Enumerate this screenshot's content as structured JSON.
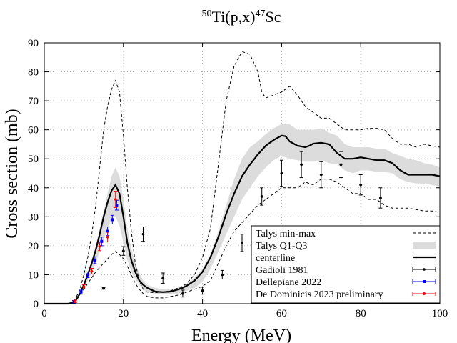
{
  "chart_data": {
    "type": "line",
    "title": {
      "base": "Ti(p,x)",
      "target_mass": "50",
      "product_mass": "47",
      "product": "Sc"
    },
    "xlabel": "Energy (MeV)",
    "ylabel": "Cross section (mb)",
    "xlim": [
      0,
      100
    ],
    "ylim": [
      0,
      90
    ],
    "xticks": [
      0,
      20,
      40,
      60,
      80,
      100
    ],
    "yticks": [
      0,
      10,
      20,
      30,
      40,
      50,
      60,
      70,
      80,
      90
    ],
    "grid": true,
    "legend_position": "bottom-right",
    "legend": [
      {
        "label": "Talys min-max",
        "style": "dashed"
      },
      {
        "label": "Talys Q1-Q3",
        "style": "band"
      },
      {
        "label": "centerline",
        "style": "solid"
      },
      {
        "label": "Gadioli 1981",
        "style": "points",
        "color": "#000000"
      },
      {
        "label": "Dellepiane 2022",
        "style": "points",
        "color": "#0000ff"
      },
      {
        "label": "De Dominicis 2023 preliminary",
        "style": "points",
        "color": "#ff0000"
      }
    ],
    "series": {
      "talys_max": {
        "name": "Talys min-max",
        "x": [
          0,
          6,
          7,
          8,
          9,
          10,
          11,
          12,
          13,
          14,
          15,
          16,
          17,
          18,
          19,
          20,
          21,
          22,
          23,
          24,
          25,
          26,
          28,
          30,
          32,
          34,
          35,
          36,
          38,
          40,
          42,
          44,
          46,
          48,
          50,
          52,
          54,
          55,
          56,
          58,
          60,
          62,
          64,
          66,
          68,
          70,
          72,
          74,
          76,
          78,
          80,
          82,
          84,
          86,
          88,
          90,
          92,
          94,
          96,
          98,
          100
        ],
        "values": [
          0,
          0,
          0.5,
          2,
          5,
          10,
          16,
          24,
          34,
          47,
          60,
          68,
          74,
          77,
          73,
          58,
          40,
          25,
          14,
          8,
          5,
          4,
          3.8,
          4,
          4.5,
          5.5,
          6,
          7,
          10,
          16,
          26,
          48,
          70,
          82,
          87,
          86,
          80,
          73,
          71,
          72,
          73,
          75,
          72,
          68,
          66,
          64,
          64,
          62,
          60,
          60,
          60,
          60.5,
          60.5,
          60,
          57,
          55,
          55,
          54,
          55,
          54.5,
          54
        ]
      },
      "talys_min": {
        "name": "Talys min-max",
        "x": [
          0,
          6,
          7,
          8,
          9,
          10,
          11,
          12,
          13,
          14,
          15,
          16,
          17,
          18,
          19,
          20,
          21,
          22,
          23,
          24,
          25,
          26,
          28,
          30,
          32,
          34,
          35,
          36,
          38,
          40,
          42,
          44,
          46,
          48,
          50,
          52,
          54,
          56,
          58,
          60,
          62,
          64,
          66,
          68,
          70,
          72,
          74,
          76,
          78,
          80,
          82,
          84,
          86,
          88,
          90,
          92,
          94,
          96,
          98,
          100
        ],
        "values": [
          0,
          0,
          0.3,
          1,
          3,
          5,
          7,
          9,
          11,
          12.5,
          14,
          15.5,
          17,
          18,
          17,
          15.5,
          13,
          10,
          7,
          5,
          3.5,
          2.5,
          2,
          2,
          2.5,
          3,
          3.5,
          4,
          5,
          6,
          8,
          14,
          20,
          25,
          28,
          31,
          34,
          36,
          38,
          40,
          40,
          40,
          42,
          41,
          43,
          43,
          42,
          40,
          38,
          38,
          36,
          36,
          34,
          33,
          33,
          33,
          32.5,
          32,
          32,
          31.5
        ]
      },
      "q3": {
        "name": "Talys Q1-Q3",
        "x": [
          0,
          6,
          7,
          8,
          9,
          10,
          11,
          12,
          13,
          14,
          15,
          16,
          17,
          18,
          19,
          20,
          21,
          22,
          23,
          24,
          25,
          26,
          28,
          30,
          32,
          34,
          35,
          36,
          38,
          40,
          42,
          44,
          46,
          48,
          50,
          52,
          54,
          56,
          58,
          60,
          62,
          64,
          66,
          68,
          70,
          72,
          74,
          76,
          78,
          80,
          82,
          84,
          86,
          88,
          90,
          92,
          94,
          96,
          98,
          100
        ],
        "values": [
          0,
          0,
          0.4,
          1.5,
          4,
          7.5,
          11,
          15,
          20,
          26,
          32,
          38,
          44,
          47,
          44,
          36,
          26,
          19,
          14,
          10.5,
          8,
          6.5,
          5.5,
          5,
          5,
          5.5,
          6,
          7,
          9,
          12,
          17,
          25,
          34,
          43,
          50,
          54,
          56,
          58.5,
          60.5,
          62,
          62,
          60,
          60,
          60,
          60.5,
          59,
          58,
          55,
          54,
          54,
          54,
          53.5,
          53.5,
          52,
          51,
          50,
          49.5,
          48.5,
          48,
          47
        ]
      },
      "q1": {
        "name": "Talys Q1-Q3",
        "x": [
          0,
          6,
          7,
          8,
          9,
          10,
          11,
          12,
          13,
          14,
          15,
          16,
          17,
          18,
          19,
          20,
          21,
          22,
          23,
          24,
          25,
          26,
          28,
          30,
          32,
          34,
          35,
          36,
          38,
          40,
          42,
          44,
          46,
          48,
          50,
          52,
          54,
          56,
          58,
          60,
          62,
          64,
          66,
          68,
          70,
          72,
          74,
          76,
          78,
          80,
          82,
          84,
          86,
          88,
          90,
          92,
          94,
          96,
          98,
          100
        ],
        "values": [
          0,
          0,
          0.3,
          1,
          3,
          5.5,
          8,
          11,
          14,
          18,
          22,
          26,
          29,
          30,
          27,
          21,
          15,
          11,
          8.5,
          6.5,
          5,
          4,
          3.5,
          3.2,
          3.2,
          3.6,
          4,
          4.5,
          5.5,
          7.5,
          12,
          18,
          24,
          30,
          36,
          40,
          44,
          47,
          49.5,
          51,
          50,
          49.5,
          49,
          49,
          49.5,
          48.5,
          48,
          46,
          45,
          46,
          46,
          45.5,
          45.5,
          45,
          43,
          42,
          41.5,
          41.5,
          41,
          40.5
        ]
      },
      "centerline": {
        "name": "centerline",
        "x": [
          0,
          6,
          7,
          8,
          9,
          10,
          11,
          12,
          13,
          14,
          15,
          16,
          17,
          18,
          19,
          20,
          21,
          22,
          23,
          24,
          25,
          26,
          28,
          30,
          32,
          34,
          35,
          36,
          38,
          40,
          42,
          44,
          46,
          48,
          50,
          52,
          54,
          56,
          58,
          60,
          61,
          62,
          64,
          66,
          67,
          68,
          70,
          72,
          74,
          76,
          78,
          80,
          82,
          84,
          86,
          88,
          90,
          92,
          94,
          96,
          98,
          100
        ],
        "values": [
          0,
          0,
          0.3,
          1.2,
          3.5,
          6.5,
          10,
          14,
          18.5,
          24,
          30,
          35,
          39,
          41,
          38,
          30,
          21,
          15,
          11,
          8,
          6.5,
          5.5,
          4.2,
          4,
          4.2,
          5,
          5.5,
          6.2,
          8,
          11,
          16,
          23,
          31,
          38,
          44,
          48,
          51.5,
          54.5,
          56.5,
          58,
          57.8,
          56,
          54.5,
          54,
          54.5,
          55.2,
          55.5,
          55,
          52,
          50,
          50,
          50.5,
          50,
          49.5,
          49.5,
          48.5,
          46,
          44.5,
          44.5,
          44.5,
          44.5,
          44
        ]
      },
      "gadioli_1981": {
        "name": "Gadioli 1981",
        "color": "#000000",
        "points": [
          {
            "x": 15,
            "y": 5.3,
            "err": 0.3
          },
          {
            "x": 20,
            "y": 18.2,
            "err": 1.5
          },
          {
            "x": 25,
            "y": 24,
            "err": 2.5
          },
          {
            "x": 30,
            "y": 8.8,
            "err": 1.8
          },
          {
            "x": 35,
            "y": 3.5,
            "err": 1.2
          },
          {
            "x": 40,
            "y": 4.5,
            "err": 1.2
          },
          {
            "x": 45,
            "y": 10,
            "err": 1.5
          },
          {
            "x": 50,
            "y": 21,
            "err": 3
          },
          {
            "x": 55,
            "y": 37,
            "err": 3
          },
          {
            "x": 60,
            "y": 45,
            "err": 4.5
          },
          {
            "x": 65,
            "y": 48,
            "err": 4.5
          },
          {
            "x": 70,
            "y": 44.5,
            "err": 4.5
          },
          {
            "x": 75,
            "y": 48,
            "err": 4.5
          },
          {
            "x": 80,
            "y": 41,
            "err": 3.5
          },
          {
            "x": 85,
            "y": 36.5,
            "err": 3.5
          }
        ]
      },
      "dellepiane_2022": {
        "name": "Dellepiane 2022",
        "color": "#0000ff",
        "points": [
          {
            "x": 7.5,
            "y": 0.6,
            "err": 0.5
          },
          {
            "x": 9.3,
            "y": 4,
            "err": 0.7
          },
          {
            "x": 11,
            "y": 10,
            "err": 1
          },
          {
            "x": 12.8,
            "y": 15,
            "err": 1.2
          },
          {
            "x": 14.5,
            "y": 21.5,
            "err": 1.5
          },
          {
            "x": 16,
            "y": 25,
            "err": 1.5
          },
          {
            "x": 17.2,
            "y": 29,
            "err": 1.5
          },
          {
            "x": 18.3,
            "y": 34,
            "err": 1.7
          }
        ]
      },
      "dedominicis_2023": {
        "name": "De Dominicis 2023 preliminary",
        "color": "#ff0000",
        "points": [
          {
            "x": 7.8,
            "y": 0.8,
            "err": 0.4
          },
          {
            "x": 10,
            "y": 5.8,
            "err": 0.7
          },
          {
            "x": 12,
            "y": 11.2,
            "err": 1
          },
          {
            "x": 14,
            "y": 19.8,
            "err": 1.5
          },
          {
            "x": 16,
            "y": 23,
            "err": 1.7
          },
          {
            "x": 18,
            "y": 36,
            "err": 2.8
          }
        ]
      }
    }
  }
}
